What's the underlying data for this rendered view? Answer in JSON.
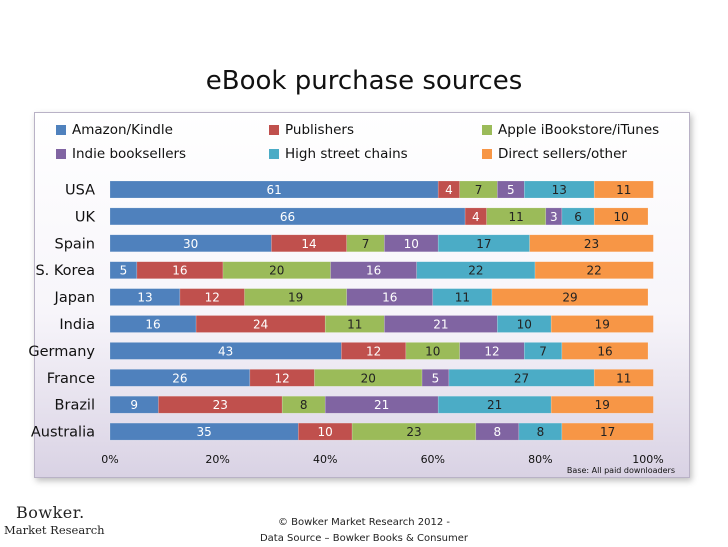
{
  "footer": {
    "logo_word": "Bowker.",
    "logo_sub": "Market Research",
    "copyright_line1": "© Bowker Market Research 2012 -",
    "copyright_line2": "Data Source – Bowker Books & Consumer"
  },
  "chart_data": {
    "type": "bar",
    "orientation": "horizontal",
    "stacked": "percent",
    "title": "eBook purchase sources",
    "note": "Base: All paid  downloaders",
    "legend_position": "top",
    "xlim": [
      0,
      100
    ],
    "x_ticks": [
      "0%",
      "20%",
      "40%",
      "60%",
      "80%",
      "100%"
    ],
    "grid": false,
    "categories": [
      "USA",
      "UK",
      "Spain",
      "S. Korea",
      "Japan",
      "India",
      "Germany",
      "France",
      "Brazil",
      "Australia"
    ],
    "series": [
      {
        "name": "Amazon/Kindle",
        "color": "#4f81bd",
        "values": [
          61,
          66,
          30,
          5,
          13,
          16,
          43,
          26,
          9,
          35
        ]
      },
      {
        "name": "Publishers",
        "color": "#c0504d",
        "values": [
          4,
          4,
          14,
          16,
          12,
          24,
          12,
          12,
          23,
          10
        ]
      },
      {
        "name": "Apple iBookstore/iTunes",
        "color": "#9bbb59",
        "values": [
          7,
          11,
          7,
          20,
          19,
          11,
          10,
          20,
          8,
          23
        ]
      },
      {
        "name": "Indie booksellers",
        "color": "#8064a2",
        "values": [
          5,
          3,
          10,
          16,
          16,
          21,
          12,
          5,
          21,
          8
        ]
      },
      {
        "name": "High street chains",
        "color": "#4bacc6",
        "values": [
          13,
          6,
          17,
          22,
          11,
          10,
          7,
          27,
          21,
          8
        ]
      },
      {
        "name": "Direct sellers/other",
        "color": "#f79646",
        "values": [
          11,
          10,
          23,
          22,
          29,
          19,
          16,
          11,
          19,
          17
        ]
      }
    ]
  }
}
